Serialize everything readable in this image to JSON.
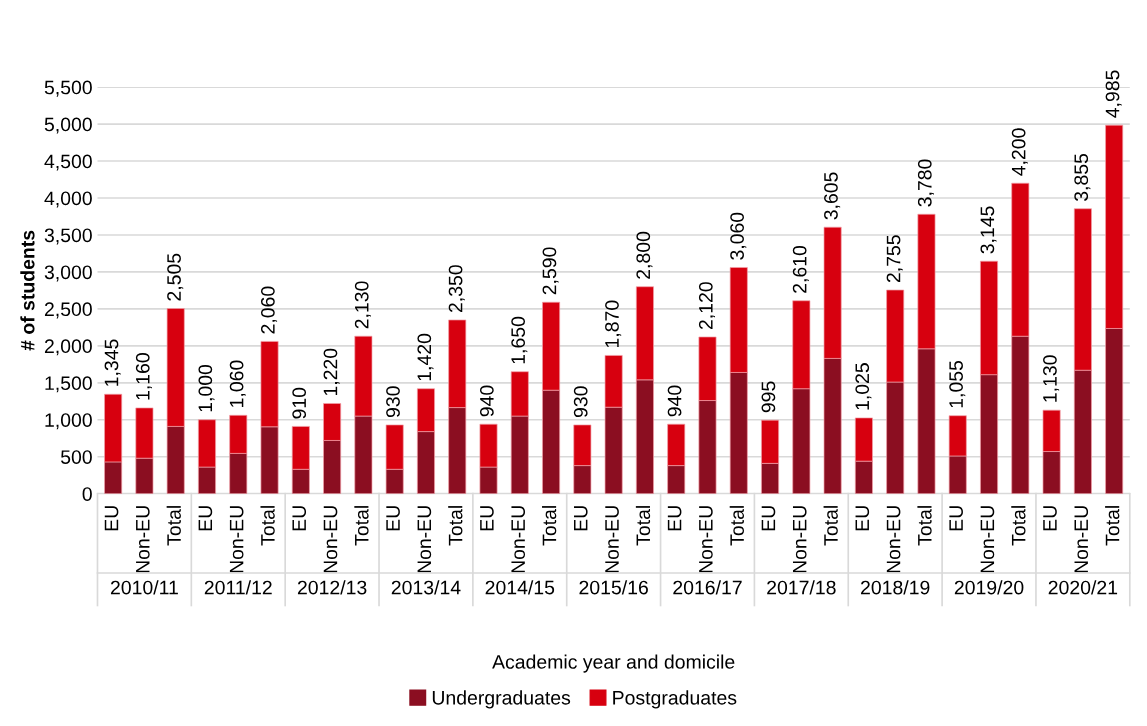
{
  "chart_data": {
    "type": "bar",
    "stacked": true,
    "ylabel": "# of students",
    "xlabel": "Academic year and domicile",
    "categories": [
      "EU",
      "Non-EU",
      "Total",
      "EU",
      "Non-EU",
      "Total",
      "EU",
      "Non-EU",
      "Total",
      "EU",
      "Non-EU",
      "Total",
      "EU",
      "Non-EU",
      "Total",
      "EU",
      "Non-EU",
      "Total",
      "EU",
      "Non-EU",
      "Total",
      "EU",
      "Non-EU",
      "Total",
      "EU",
      "Non-EU",
      "Total",
      "EU",
      "Non-EU",
      "Total",
      "EU",
      "Non-EU",
      "Total"
    ],
    "annotations": [
      "2010/11",
      "2011/12",
      "2012/13",
      "2013/14",
      "2014/15",
      "2015/16",
      "2016/17",
      "2017/18",
      "2018/19",
      "2019/20",
      "2020/21"
    ],
    "series": [
      {
        "name": "Undergraduates",
        "color": "#8b0e21",
        "values": [
          430,
          480,
          910,
          360,
          545,
          905,
          330,
          720,
          1050,
          330,
          840,
          1165,
          360,
          1050,
          1400,
          380,
          1170,
          1540,
          380,
          1260,
          1640,
          410,
          1420,
          1830,
          440,
          1510,
          1960,
          510,
          1610,
          2130,
          570,
          1670,
          2235
        ]
      },
      {
        "name": "Postgraduates",
        "color": "#d7000f",
        "values": [
          915,
          680,
          1595,
          640,
          515,
          1155,
          580,
          500,
          1080,
          600,
          580,
          1185,
          580,
          600,
          1190,
          550,
          700,
          1260,
          560,
          860,
          1420,
          585,
          1190,
          1775,
          585,
          1245,
          1820,
          545,
          1535,
          2070,
          560,
          2185,
          2750
        ]
      }
    ],
    "totals": [
      "1,345",
      "1,160",
      "2,505",
      "1,000",
      "1,060",
      "2,060",
      "910",
      "1,220",
      "2,130",
      "930",
      "1,420",
      "2,350",
      "940",
      "1,650",
      "2,590",
      "930",
      "1,870",
      "2,800",
      "940",
      "2,120",
      "3,060",
      "995",
      "2,610",
      "3,605",
      "1,025",
      "2,755",
      "3,780",
      "1,055",
      "3,145",
      "4,200",
      "1,130",
      "3,855",
      "4,985"
    ],
    "ylim": [
      0,
      5500
    ],
    "yticks": [
      0,
      {
        "value": 500,
        "label": "500"
      },
      {
        "value": 1000,
        "label": "1,000"
      },
      {
        "value": 1500,
        "label": "1,500"
      },
      {
        "value": 2000,
        "label": "2,000"
      },
      {
        "value": 2500,
        "label": "2,500"
      },
      {
        "value": 3000,
        "label": "3,000"
      },
      {
        "value": 3500,
        "label": "3,500"
      },
      {
        "value": 4000,
        "label": "4,000"
      },
      {
        "value": 4500,
        "label": "4,500"
      },
      {
        "value": 5000,
        "label": "5,000"
      },
      {
        "value": 5500,
        "label": "5,500"
      }
    ],
    "grid": "y",
    "legend": "bottom"
  }
}
